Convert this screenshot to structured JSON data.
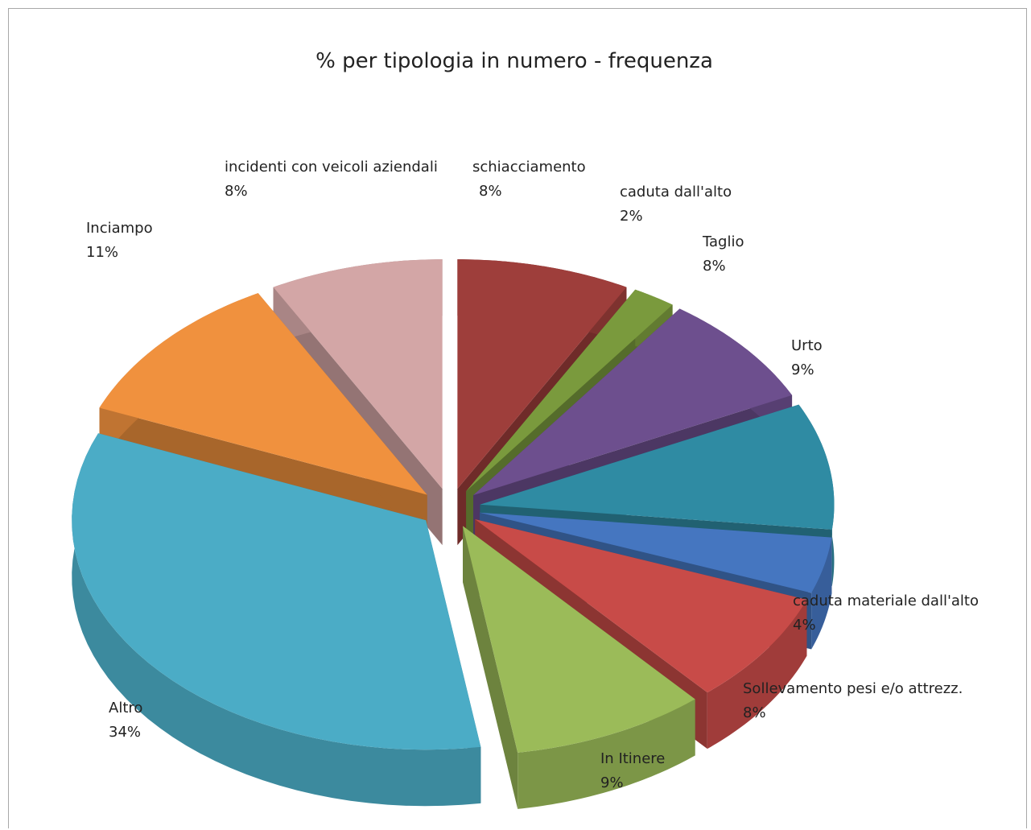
{
  "chart_data": {
    "type": "pie",
    "title": "% per tipologia in numero - frequenza",
    "slices": [
      {
        "label": "schiacciamento",
        "value": 8,
        "value_label": "8%",
        "color": "#9e3e3b"
      },
      {
        "label": "caduta dall'alto",
        "value": 2,
        "value_label": "2%",
        "color": "#7a9a3d"
      },
      {
        "label": "Taglio",
        "value": 8,
        "value_label": "8%",
        "color": "#6d4f8e"
      },
      {
        "label": "Urto",
        "value": 9,
        "value_label": "9%",
        "color": "#2f8ba3"
      },
      {
        "label": "caduta materiale dall'alto",
        "value": 4,
        "value_label": "4%",
        "color": "#4576c0"
      },
      {
        "label": "Sollevamento pesi e/o attrezz.",
        "value": 8,
        "value_label": "8%",
        "color": "#c84b48"
      },
      {
        "label": "In Itinere",
        "value": 9,
        "value_label": "9%",
        "color": "#9bbb59"
      },
      {
        "label": "Altro",
        "value": 34,
        "value_label": "34%",
        "color": "#4bacc6"
      },
      {
        "label": "Inciampo",
        "value": 11,
        "value_label": "11%",
        "color": "#f0913e"
      },
      {
        "label": "incidenti con veicoli aziendali",
        "value": 8,
        "value_label": "8%",
        "color": "#d3a6a6"
      }
    ],
    "legend": "none",
    "style": "3d-exploded"
  }
}
